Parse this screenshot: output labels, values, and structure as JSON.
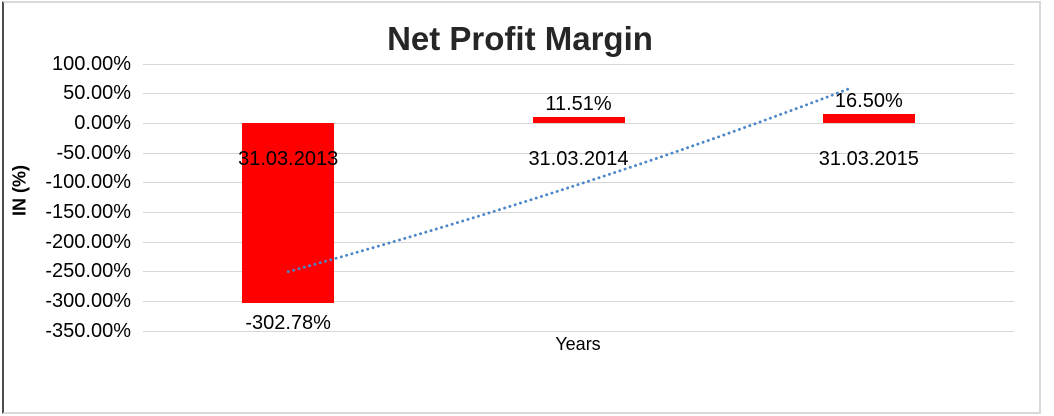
{
  "chart_data": {
    "type": "bar",
    "title": "Net Profit Margin",
    "xlabel": "Years",
    "ylabel": "IN (%)",
    "categories": [
      "31.03.2013",
      "31.03.2014",
      "31.03.2015"
    ],
    "values": [
      -302.78,
      11.51,
      16.5
    ],
    "data_labels": [
      "-302.78%",
      "11.51%",
      "16.50%"
    ],
    "y_axis": {
      "tick_labels": [
        "100.00%",
        "50.00%",
        "0.00%",
        "-50.00%",
        "-100.00%",
        "-150.00%",
        "-200.00%",
        "-250.00%",
        "-300.00%",
        "-350.00%"
      ],
      "tick_values": [
        100,
        50,
        0,
        -50,
        -100,
        -150,
        -200,
        -250,
        -300,
        -350
      ]
    },
    "ylim": [
      -350,
      100
    ],
    "grid": true,
    "legend": false,
    "bar_color": "#ff0000",
    "gridline_color": "#d6d6d6",
    "title_color": "#262626",
    "trendline": {
      "style": "dotted",
      "color": "#4a86c8",
      "points": [
        [
          0,
          -250
        ],
        [
          1,
          -103
        ],
        [
          1.93,
          58
        ]
      ]
    }
  }
}
